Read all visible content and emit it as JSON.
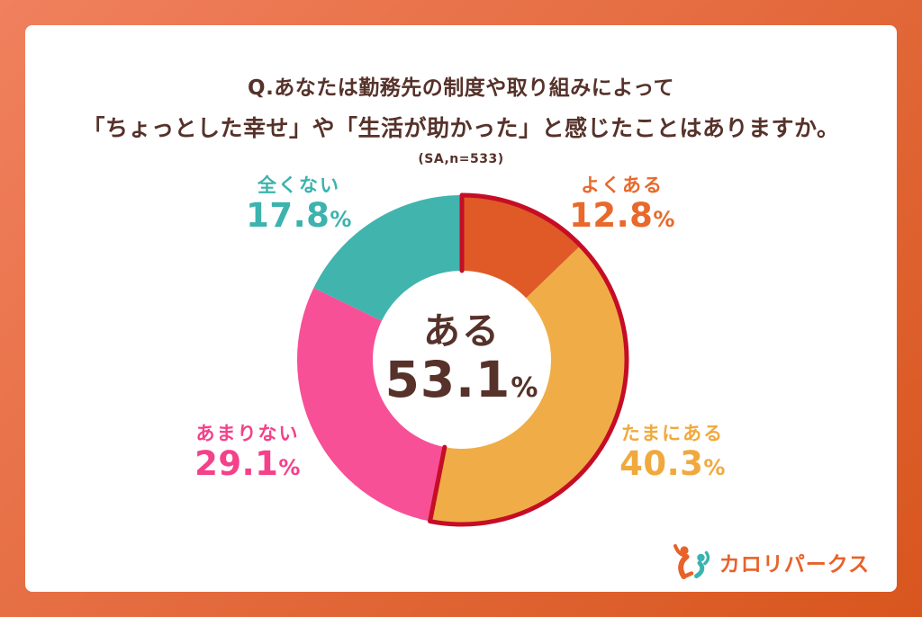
{
  "frame": {
    "gradient_start": "#F0805E",
    "gradient_end": "#D8561E"
  },
  "title": {
    "line1": "Q.あなたは勤務先の制度や取り組みによって",
    "line2": "「ちょっとした幸せ」や「生活が助かった」と感じたことはありますか。",
    "sample": "(SA,n=533)",
    "color": "#56322A"
  },
  "chart_data": {
    "type": "pie",
    "subtype": "donut",
    "title": "Q.あなたは勤務先の制度や取り組みによって「ちょっとした幸せ」や「生活が助かった」と感じたことはありますか。",
    "sample_note": "SA, n=533",
    "unit": "%",
    "start_angle_deg": 0,
    "direction": "clockwise",
    "segments": [
      {
        "label": "よくある",
        "value": 12.8,
        "color": "#DF5A26",
        "label_color": "#E8692B"
      },
      {
        "label": "たまにある",
        "value": 40.3,
        "color": "#F0AD47",
        "label_color": "#F0A93E"
      },
      {
        "label": "あまりない",
        "value": 29.1,
        "color": "#F75097",
        "label_color": "#F4418A"
      },
      {
        "label": "全くない",
        "value": 17.8,
        "color": "#41B4AE",
        "label_color": "#3CB3AE"
      }
    ],
    "center": {
      "label": "ある",
      "value": "53.1",
      "unit": "%",
      "color": "#56322A"
    },
    "highlight": {
      "start_pct": 0,
      "end_pct": 53.1,
      "color": "#C60D26",
      "note": "red outline around ある group (よくある+たまにある)"
    }
  },
  "logo": {
    "text": "カロリパークス",
    "color": "#E8622A",
    "icon_colors": [
      "#E8622A",
      "#3CB3AE"
    ]
  }
}
